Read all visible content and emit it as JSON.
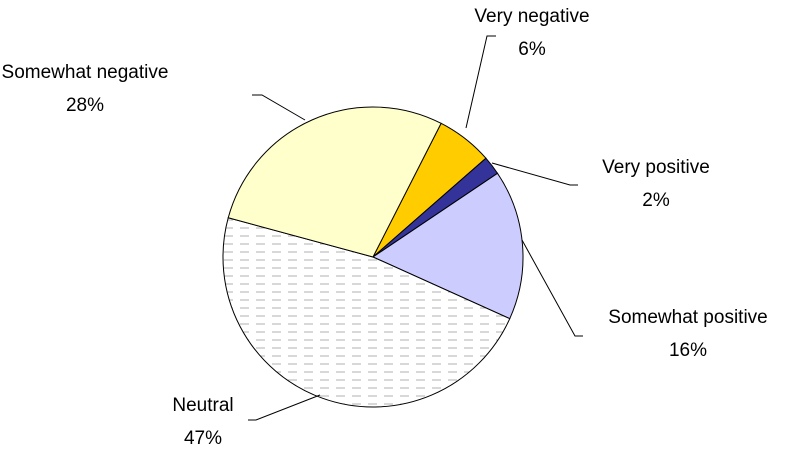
{
  "chart_data": {
    "type": "pie",
    "categories": [
      "Very negative",
      "Very positive",
      "Somewhat positive",
      "Neutral",
      "Somewhat negative"
    ],
    "values": [
      6,
      2,
      16,
      47,
      28
    ],
    "value_labels": [
      "6%",
      "2%",
      "16%",
      "47%",
      "28%"
    ],
    "colors": [
      "#ffcc00",
      "#333399",
      "#ccccff",
      "#ffffff",
      "#ffffcc"
    ],
    "patterns": [
      null,
      null,
      null,
      "dashed",
      null
    ]
  }
}
